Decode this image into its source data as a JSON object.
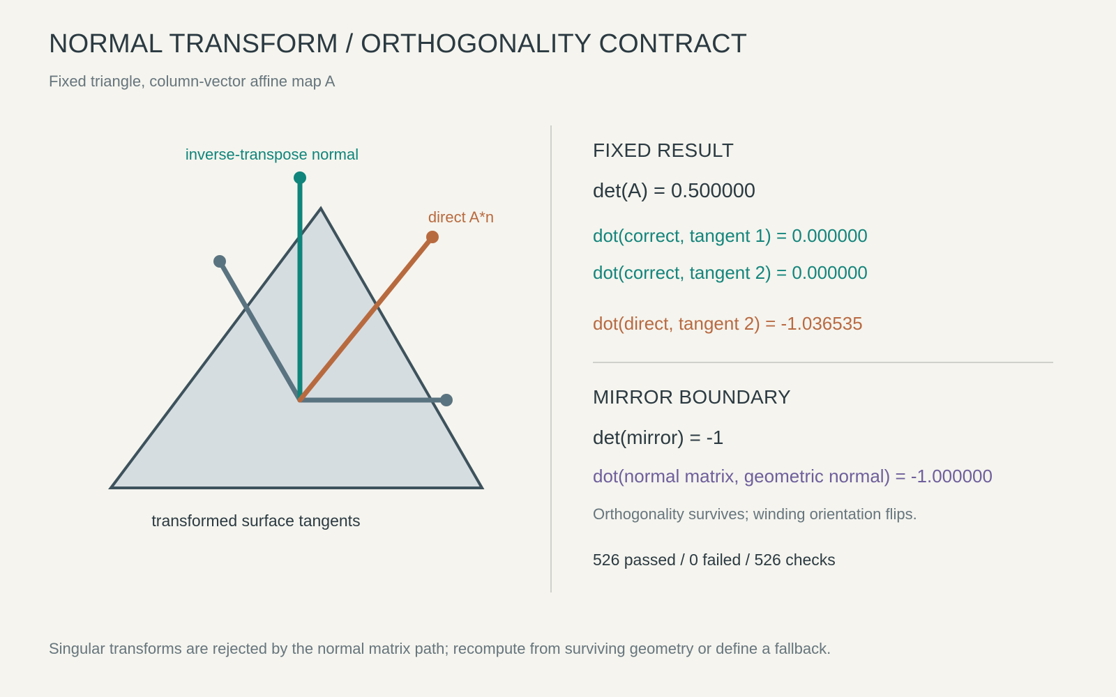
{
  "header": {
    "title": "NORMAL TRANSFORM / ORTHOGONALITY CONTRACT",
    "subtitle": "Fixed triangle, column-vector affine map A"
  },
  "diagram": {
    "label_correct_normal": "inverse-transpose normal",
    "label_direct_normal": "direct A*n",
    "label_tangents": "transformed surface tangents",
    "colors": {
      "triangle_fill": "#d6dde1",
      "triangle_stroke": "#3d525c",
      "tangent": "#5a7380",
      "correct_normal": "#0f857b",
      "direct_normal": "#b86a3f"
    }
  },
  "fixed_result": {
    "heading": "FIXED RESULT",
    "det": "det(A) = 0.500000",
    "dot_correct_t1": "dot(correct, tangent 1) = 0.000000",
    "dot_correct_t2": "dot(correct, tangent 2) = 0.000000",
    "dot_direct_t2": "dot(direct, tangent 2) = -1.036535"
  },
  "mirror_boundary": {
    "heading": "MIRROR BOUNDARY",
    "det": "det(mirror) = -1",
    "dot_normal": "dot(normal matrix, geometric normal) = -1.000000",
    "note": "Orthogonality survives; winding orientation flips.",
    "stats": "526 passed / 0 failed / 526 checks"
  },
  "footer": "Singular transforms are rejected by the normal matrix path; recompute from surviving geometry or define a fallback."
}
